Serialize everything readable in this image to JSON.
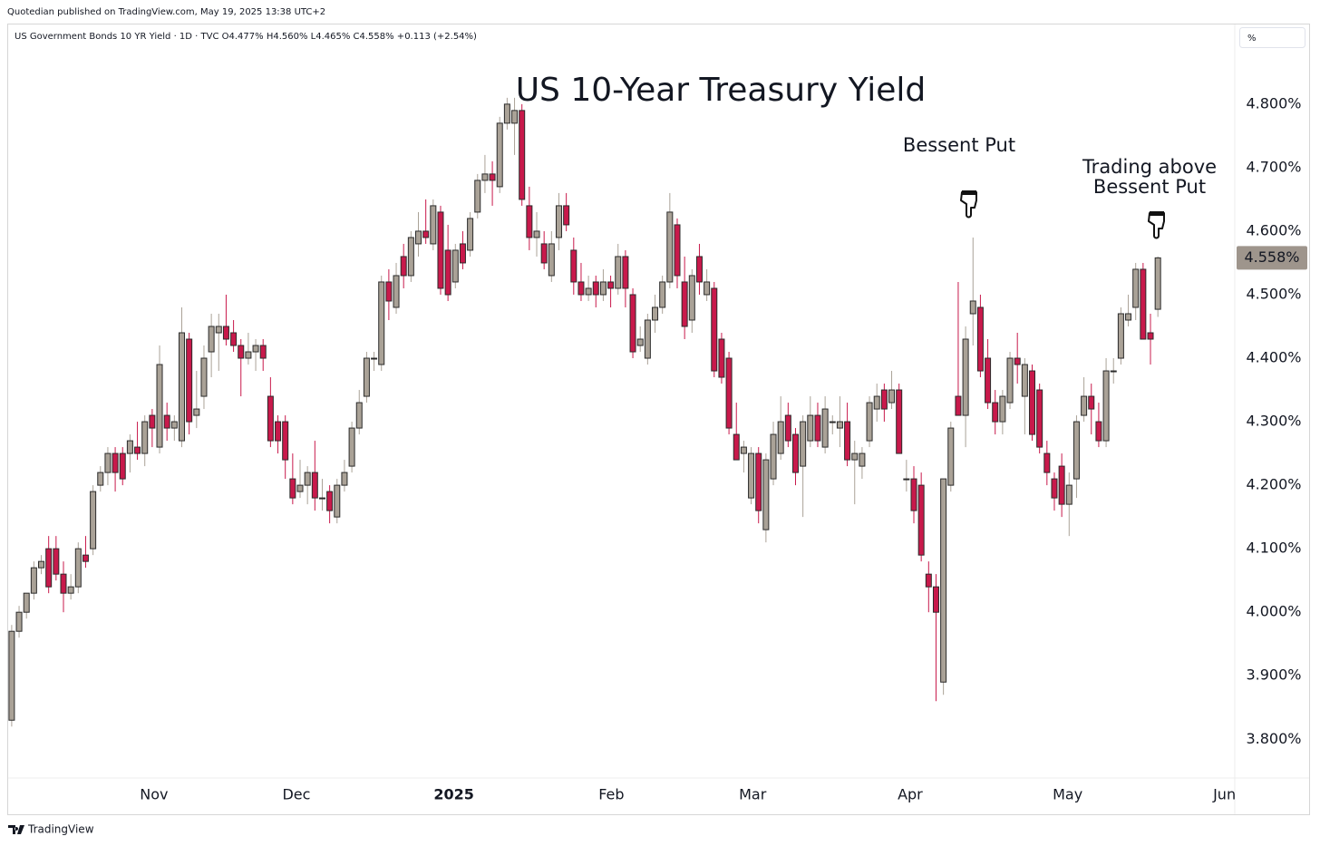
{
  "publisher": "Quotedian published on TradingView.com, May 19, 2025 13:38 UTC+2",
  "symbol_line": "US Government Bonds 10 YR Yield · 1D · TVC  O4.477%  H4.560%  L4.465%  C4.558%  +0.113 (+2.54%)",
  "scale_button": "%",
  "footer": "TradingView",
  "chart_data": {
    "type": "candlestick",
    "title": "US 10-Year Treasury Yield",
    "annotations": [
      {
        "lines": [
          "Bessent Put"
        ]
      },
      {
        "lines": [
          "Trading above",
          "Bessent Put"
        ]
      }
    ],
    "ylim": [
      3.739,
      4.924
    ],
    "yticks": [
      {
        "value": 3.8,
        "label": "3.800%"
      },
      {
        "value": 3.9,
        "label": "3.900%"
      },
      {
        "value": 4.0,
        "label": "4.000%"
      },
      {
        "value": 4.1,
        "label": "4.100%"
      },
      {
        "value": 4.2,
        "label": "4.200%"
      },
      {
        "value": 4.3,
        "label": "4.300%"
      },
      {
        "value": 4.4,
        "label": "4.400%"
      },
      {
        "value": 4.5,
        "label": "4.500%"
      },
      {
        "value": 4.6,
        "label": "4.600%"
      },
      {
        "value": 4.7,
        "label": "4.700%"
      },
      {
        "value": 4.8,
        "label": "4.800%"
      }
    ],
    "xlim": [
      -0.6,
      165.4
    ],
    "xticks": [
      {
        "value": 19.25,
        "label": "Nov"
      },
      {
        "value": 38.5,
        "label": "Dec"
      },
      {
        "value": 59.8,
        "label": "2025"
      },
      {
        "value": 81.1,
        "label": "Feb"
      },
      {
        "value": 100.2,
        "label": "Mar"
      },
      {
        "value": 121.5,
        "label": "Apr"
      },
      {
        "value": 142.8,
        "label": "May"
      },
      {
        "value": 164,
        "label": "Jun"
      }
    ],
    "grid": false,
    "last_price": {
      "value": 4.558,
      "label": "4.558%"
    },
    "series": [
      {
        "up_color": "#aaa297",
        "down_color": "#c8194b",
        "edge_color": "#2b2b2b",
        "ohlc": [
          [
            3.83,
            3.98,
            3.82,
            3.97
          ],
          [
            3.97,
            4.01,
            3.96,
            4.0
          ],
          [
            4.0,
            4.03,
            3.99,
            4.03
          ],
          [
            4.03,
            4.08,
            4.02,
            4.07
          ],
          [
            4.07,
            4.09,
            4.06,
            4.08
          ],
          [
            4.1,
            4.12,
            4.03,
            4.04
          ],
          [
            4.1,
            4.12,
            4.05,
            4.06
          ],
          [
            4.06,
            4.08,
            4.0,
            4.03
          ],
          [
            4.03,
            4.06,
            4.02,
            4.04
          ],
          [
            4.04,
            4.11,
            4.03,
            4.1
          ],
          [
            4.09,
            4.12,
            4.07,
            4.08
          ],
          [
            4.1,
            4.2,
            4.09,
            4.19
          ],
          [
            4.2,
            4.23,
            4.19,
            4.22
          ],
          [
            4.22,
            4.26,
            4.2,
            4.25
          ],
          [
            4.25,
            4.26,
            4.19,
            4.22
          ],
          [
            4.25,
            4.26,
            4.2,
            4.21
          ],
          [
            4.25,
            4.28,
            4.22,
            4.27
          ],
          [
            4.26,
            4.3,
            4.24,
            4.25
          ],
          [
            4.25,
            4.31,
            4.23,
            4.3
          ],
          [
            4.31,
            4.32,
            4.26,
            4.29
          ],
          [
            4.26,
            4.42,
            4.25,
            4.39
          ],
          [
            4.31,
            4.33,
            4.27,
            4.29
          ],
          [
            4.29,
            4.31,
            4.27,
            4.3
          ],
          [
            4.27,
            4.48,
            4.26,
            4.44
          ],
          [
            4.43,
            4.44,
            4.28,
            4.3
          ],
          [
            4.31,
            4.38,
            4.29,
            4.32
          ],
          [
            4.34,
            4.42,
            4.32,
            4.4
          ],
          [
            4.41,
            4.47,
            4.37,
            4.45
          ],
          [
            4.44,
            4.47,
            4.38,
            4.45
          ],
          [
            4.45,
            4.5,
            4.42,
            4.43
          ],
          [
            4.44,
            4.46,
            4.41,
            4.42
          ],
          [
            4.42,
            4.43,
            4.34,
            4.4
          ],
          [
            4.4,
            4.44,
            4.39,
            4.41
          ],
          [
            4.41,
            4.43,
            4.38,
            4.42
          ],
          [
            4.42,
            4.43,
            4.38,
            4.4
          ],
          [
            4.34,
            4.37,
            4.26,
            4.27
          ],
          [
            4.3,
            4.31,
            4.25,
            4.27
          ],
          [
            4.3,
            4.31,
            4.21,
            4.24
          ],
          [
            4.21,
            4.25,
            4.17,
            4.18
          ],
          [
            4.19,
            4.24,
            4.18,
            4.2
          ],
          [
            4.2,
            4.23,
            4.17,
            4.22
          ],
          [
            4.22,
            4.27,
            4.16,
            4.18
          ],
          [
            4.18,
            4.21,
            4.16,
            4.18
          ],
          [
            4.19,
            4.2,
            4.14,
            4.16
          ],
          [
            4.15,
            4.21,
            4.14,
            4.2
          ],
          [
            4.2,
            4.24,
            4.19,
            4.22
          ],
          [
            4.23,
            4.3,
            4.22,
            4.29
          ],
          [
            4.29,
            4.35,
            4.28,
            4.33
          ],
          [
            4.34,
            4.41,
            4.33,
            4.4
          ],
          [
            4.4,
            4.41,
            4.38,
            4.4
          ],
          [
            4.39,
            4.53,
            4.38,
            4.52
          ],
          [
            4.52,
            4.54,
            4.46,
            4.49
          ],
          [
            4.48,
            4.55,
            4.47,
            4.53
          ],
          [
            4.56,
            4.58,
            4.51,
            4.53
          ],
          [
            4.53,
            4.6,
            4.52,
            4.59
          ],
          [
            4.58,
            4.63,
            4.56,
            4.6
          ],
          [
            4.6,
            4.65,
            4.58,
            4.59
          ],
          [
            4.58,
            4.65,
            4.57,
            4.64
          ],
          [
            4.63,
            4.64,
            4.5,
            4.51
          ],
          [
            4.57,
            4.61,
            4.49,
            4.5
          ],
          [
            4.52,
            4.58,
            4.51,
            4.57
          ],
          [
            4.58,
            4.6,
            4.54,
            4.55
          ],
          [
            4.57,
            4.63,
            4.56,
            4.62
          ],
          [
            4.63,
            4.69,
            4.62,
            4.68
          ],
          [
            4.68,
            4.72,
            4.66,
            4.69
          ],
          [
            4.69,
            4.71,
            4.64,
            4.68
          ],
          [
            4.67,
            4.78,
            4.66,
            4.77
          ],
          [
            4.77,
            4.81,
            4.76,
            4.8
          ],
          [
            4.77,
            4.81,
            4.72,
            4.79
          ],
          [
            4.79,
            4.8,
            4.64,
            4.65
          ],
          [
            4.64,
            4.67,
            4.57,
            4.59
          ],
          [
            4.59,
            4.63,
            4.56,
            4.6
          ],
          [
            4.58,
            4.6,
            4.54,
            4.55
          ],
          [
            4.53,
            4.6,
            4.52,
            4.58
          ],
          [
            4.59,
            4.66,
            4.57,
            4.64
          ],
          [
            4.64,
            4.66,
            4.6,
            4.61
          ],
          [
            4.57,
            4.59,
            4.5,
            4.52
          ],
          [
            4.52,
            4.55,
            4.49,
            4.5
          ],
          [
            4.5,
            4.53,
            4.49,
            4.51
          ],
          [
            4.52,
            4.53,
            4.48,
            4.5
          ],
          [
            4.5,
            4.54,
            4.49,
            4.52
          ],
          [
            4.52,
            4.53,
            4.48,
            4.51
          ],
          [
            4.51,
            4.58,
            4.5,
            4.56
          ],
          [
            4.56,
            4.57,
            4.48,
            4.51
          ],
          [
            4.5,
            4.51,
            4.4,
            4.41
          ],
          [
            4.42,
            4.45,
            4.41,
            4.43
          ],
          [
            4.4,
            4.47,
            4.39,
            4.46
          ],
          [
            4.46,
            4.5,
            4.44,
            4.48
          ],
          [
            4.48,
            4.53,
            4.47,
            4.52
          ],
          [
            4.52,
            4.66,
            4.51,
            4.63
          ],
          [
            4.61,
            4.62,
            4.51,
            4.53
          ],
          [
            4.52,
            4.56,
            4.43,
            4.45
          ],
          [
            4.46,
            4.54,
            4.44,
            4.53
          ],
          [
            4.56,
            4.58,
            4.5,
            4.52
          ],
          [
            4.5,
            4.54,
            4.49,
            4.52
          ],
          [
            4.51,
            4.52,
            4.37,
            4.38
          ],
          [
            4.43,
            4.44,
            4.36,
            4.37
          ],
          [
            4.4,
            4.41,
            4.28,
            4.29
          ],
          [
            4.28,
            4.33,
            4.24,
            4.24
          ],
          [
            4.25,
            4.27,
            4.22,
            4.26
          ],
          [
            4.18,
            4.26,
            4.17,
            4.25
          ],
          [
            4.25,
            4.26,
            4.14,
            4.16
          ],
          [
            4.13,
            4.25,
            4.11,
            4.24
          ],
          [
            4.21,
            4.3,
            4.2,
            4.28
          ],
          [
            4.25,
            4.34,
            4.24,
            4.3
          ],
          [
            4.31,
            4.33,
            4.26,
            4.27
          ],
          [
            4.28,
            4.29,
            4.2,
            4.22
          ],
          [
            4.23,
            4.31,
            4.15,
            4.3
          ],
          [
            4.27,
            4.34,
            4.26,
            4.31
          ],
          [
            4.31,
            4.33,
            4.26,
            4.27
          ],
          [
            4.26,
            4.34,
            4.25,
            4.32
          ],
          [
            4.3,
            4.31,
            4.28,
            4.3
          ],
          [
            4.29,
            4.34,
            4.26,
            4.3
          ],
          [
            4.3,
            4.33,
            4.23,
            4.24
          ],
          [
            4.24,
            4.27,
            4.17,
            4.25
          ],
          [
            4.23,
            4.26,
            4.21,
            4.25
          ],
          [
            4.27,
            4.34,
            4.26,
            4.33
          ],
          [
            4.32,
            4.36,
            4.3,
            4.34
          ],
          [
            4.35,
            4.36,
            4.3,
            4.32
          ],
          [
            4.33,
            4.38,
            4.32,
            4.35
          ],
          [
            4.35,
            4.36,
            4.25,
            4.25
          ],
          [
            4.21,
            4.24,
            4.19,
            4.21
          ],
          [
            4.21,
            4.23,
            4.14,
            4.16
          ],
          [
            4.2,
            4.22,
            4.08,
            4.09
          ],
          [
            4.06,
            4.08,
            4.0,
            4.04
          ],
          [
            4.04,
            4.06,
            3.86,
            4.0
          ],
          [
            3.89,
            4.21,
            3.87,
            4.21
          ],
          [
            4.2,
            4.3,
            4.19,
            4.29
          ],
          [
            4.34,
            4.52,
            4.31,
            4.31
          ],
          [
            4.31,
            4.45,
            4.26,
            4.43
          ],
          [
            4.47,
            4.59,
            4.42,
            4.49
          ],
          [
            4.48,
            4.5,
            4.37,
            4.38
          ],
          [
            4.4,
            4.43,
            4.32,
            4.33
          ],
          [
            4.33,
            4.35,
            4.28,
            4.3
          ],
          [
            4.3,
            4.35,
            4.28,
            4.34
          ],
          [
            4.33,
            4.41,
            4.32,
            4.4
          ],
          [
            4.4,
            4.44,
            4.36,
            4.39
          ],
          [
            4.34,
            4.4,
            4.28,
            4.39
          ],
          [
            4.38,
            4.39,
            4.27,
            4.28
          ],
          [
            4.35,
            4.36,
            4.25,
            4.26
          ],
          [
            4.25,
            4.27,
            4.2,
            4.22
          ],
          [
            4.21,
            4.22,
            4.16,
            4.18
          ],
          [
            4.23,
            4.25,
            4.15,
            4.17
          ],
          [
            4.17,
            4.22,
            4.12,
            4.2
          ],
          [
            4.21,
            4.31,
            4.18,
            4.3
          ],
          [
            4.31,
            4.37,
            4.3,
            4.34
          ],
          [
            4.34,
            4.36,
            4.28,
            4.32
          ],
          [
            4.3,
            4.33,
            4.26,
            4.27
          ],
          [
            4.27,
            4.4,
            4.26,
            4.38
          ],
          [
            4.38,
            4.4,
            4.36,
            4.38
          ],
          [
            4.4,
            4.48,
            4.39,
            4.47
          ],
          [
            4.46,
            4.5,
            4.45,
            4.47
          ],
          [
            4.48,
            4.55,
            4.46,
            4.54
          ],
          [
            4.54,
            4.55,
            4.43,
            4.43
          ],
          [
            4.44,
            4.47,
            4.39,
            4.43
          ],
          [
            4.477,
            4.56,
            4.465,
            4.558
          ]
        ]
      }
    ]
  }
}
